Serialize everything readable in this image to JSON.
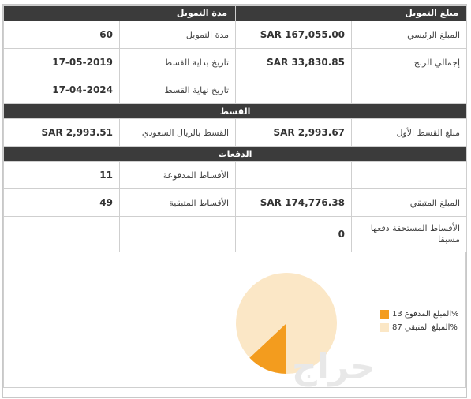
{
  "headers": {
    "financing_amount": "مبلغ التمويل",
    "financing_period": "مدة التمويل"
  },
  "rows": {
    "principal_label": "المبلغ الرئيسي",
    "principal_value": "SAR 167,055.00",
    "period_label": "مدة التمويل",
    "period_value": "60",
    "profit_label": "إجمالي الربح",
    "profit_value": "SAR 33,830.85",
    "start_label": "تاريخ بداية القسط",
    "start_value": "17-05-2019",
    "end_label": "تاريخ نهاية القسط",
    "end_value": "17-04-2024"
  },
  "installment_section": {
    "title": "القسط",
    "first_label": "مبلغ القسط الأول",
    "first_value": "SAR 2,993.67",
    "sar_label": "القسط بالريال السعودي",
    "sar_value": "SAR 2,993.51"
  },
  "payments_section": {
    "title": "الدفعات",
    "paid_label": "الأقساط المدفوعة",
    "paid_value": "11",
    "remaining_amount_label": "المبلغ المتبقي",
    "remaining_amount_value": "SAR 174,776.38",
    "remaining_inst_label": "الأقساط المتبقية",
    "remaining_inst_value": "49",
    "prepaid_label": "الأقساط المستحقة دفعها مسبقا",
    "prepaid_value": "0"
  },
  "chart_data": {
    "type": "pie",
    "slices": [
      {
        "label": "المبلغ المدفوع 13%",
        "value": 13,
        "color": "#f39c1e"
      },
      {
        "label": "المبلغ المتبقي 87%",
        "value": 87,
        "color": "#fbe7c6"
      }
    ]
  },
  "watermark": "حراج"
}
